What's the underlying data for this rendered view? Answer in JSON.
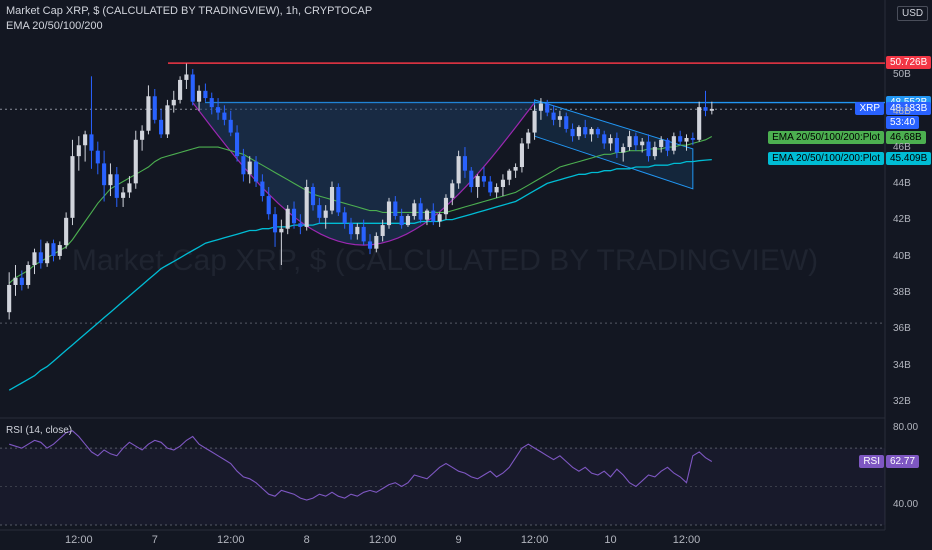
{
  "header": {
    "symbol_line": "Market Cap XRP, $ (CALCULATED BY TRADINGVIEW), 1h, CRYPTOCAP",
    "indicator_line": "EMA 20/50/100/200",
    "rsi_title": "RSI (14, close)",
    "currency": "USD"
  },
  "watermark": "Market Cap XRP, $ (CALCULATED BY TRADINGVIEW)",
  "colors": {
    "up": "#d1d4dc",
    "down": "#2962ff",
    "ema_fast": "#4caf50",
    "ema_slow": "#00bcd4",
    "resistance": "#f23645",
    "neck": "#2196f3",
    "rsi": "#7e57c2",
    "cup_fill": "#1e3a5f",
    "cup_edge": "#9c27b0"
  },
  "price_tags": [
    {
      "name": "resistance-tag",
      "label": "50.726B",
      "bg": "#f23645",
      "fg": "#ffffff",
      "price": 50.726
    },
    {
      "name": "neckline-tag",
      "label": "48.552B",
      "bg": "#2196f3",
      "fg": "#ffffff",
      "price": 48.552
    },
    {
      "name": "last-price-tag",
      "label": "48.183B",
      "sub": "53:40",
      "series": "XRP",
      "bg": "#2962ff",
      "fg": "#ffffff",
      "price": 48.183
    },
    {
      "name": "ema-green-tag",
      "label": "46.68B",
      "series": "EMA 20/50/100/200:Plot",
      "bg": "#4caf50",
      "fg": "#000000",
      "price": 46.68
    },
    {
      "name": "ema-cyan-tag",
      "label": "45.409B",
      "series": "EMA 20/50/100/200:Plot",
      "bg": "#00bcd4",
      "fg": "#000000",
      "price": 45.409
    }
  ],
  "rsi_tag": {
    "series": "RSI",
    "label": "62.77",
    "bg": "#7e57c2",
    "fg": "#ffffff",
    "value": 62.77
  },
  "chart_data": [
    {
      "type": "candlestick",
      "title": "Market Cap XRP, $ (CALCULATED BY TRADINGVIEW), 1h, CRYPTOCAP",
      "ylabel": "",
      "ylim": [
        31.5,
        52
      ],
      "y_ticks": [
        "32B",
        "34B",
        "36B",
        "38B",
        "40B",
        "42B",
        "44B",
        "46B",
        "48B",
        "50B"
      ],
      "y_tick_values": [
        32,
        34,
        36,
        38,
        40,
        42,
        44,
        46,
        48,
        50
      ],
      "x_ticks": [
        "12:00",
        "7",
        "12:00",
        "8",
        "12:00",
        "9",
        "12:00",
        "10",
        "12:00"
      ],
      "x_tick_hours": [
        12,
        24,
        36,
        48,
        60,
        72,
        84,
        96,
        108
      ],
      "horizontal_lines": [
        50.726,
        48.552,
        36.4
      ],
      "candles_ohlc": [
        [
          37.0,
          39.2,
          36.6,
          38.5
        ],
        [
          38.5,
          39.6,
          37.9,
          38.9
        ],
        [
          38.9,
          39.3,
          38.2,
          38.5
        ],
        [
          38.5,
          39.8,
          38.3,
          39.6
        ],
        [
          39.6,
          40.5,
          39.1,
          40.3
        ],
        [
          40.3,
          41.0,
          39.4,
          39.7
        ],
        [
          39.7,
          40.9,
          39.5,
          40.8
        ],
        [
          40.8,
          41.0,
          39.8,
          40.1
        ],
        [
          40.1,
          40.9,
          39.9,
          40.7
        ],
        [
          40.7,
          42.5,
          40.5,
          42.2
        ],
        [
          42.2,
          46.5,
          41.8,
          45.6
        ],
        [
          45.6,
          46.7,
          44.8,
          46.2
        ],
        [
          46.2,
          47.0,
          45.3,
          46.8
        ],
        [
          46.8,
          50.0,
          44.9,
          45.9
        ],
        [
          45.9,
          46.4,
          44.6,
          45.2
        ],
        [
          45.2,
          45.9,
          43.1,
          44.0
        ],
        [
          44.0,
          45.2,
          43.4,
          44.6
        ],
        [
          44.6,
          45.0,
          42.8,
          43.3
        ],
        [
          43.3,
          43.9,
          42.8,
          43.6
        ],
        [
          43.6,
          44.5,
          43.3,
          44.1
        ],
        [
          44.1,
          47.0,
          43.8,
          46.5
        ],
        [
          46.5,
          47.3,
          45.9,
          47.0
        ],
        [
          47.0,
          49.5,
          46.8,
          48.9
        ],
        [
          48.9,
          49.3,
          47.4,
          47.6
        ],
        [
          47.6,
          48.2,
          46.6,
          46.8
        ],
        [
          46.8,
          48.7,
          46.6,
          48.4
        ],
        [
          48.4,
          49.2,
          48.0,
          48.7
        ],
        [
          48.7,
          50.0,
          48.5,
          49.8
        ],
        [
          49.8,
          50.7,
          49.3,
          50.1
        ],
        [
          50.1,
          50.4,
          48.4,
          48.6
        ],
        [
          48.6,
          49.5,
          48.1,
          49.2
        ],
        [
          49.2,
          49.6,
          48.6,
          48.8
        ],
        [
          48.8,
          49.1,
          47.9,
          48.3
        ],
        [
          48.3,
          48.8,
          47.6,
          48.0
        ],
        [
          48.0,
          48.4,
          47.3,
          47.6
        ],
        [
          47.6,
          48.1,
          46.7,
          46.9
        ],
        [
          46.9,
          47.3,
          45.3,
          45.6
        ],
        [
          45.6,
          46.0,
          44.2,
          44.6
        ],
        [
          44.6,
          45.6,
          44.1,
          45.3
        ],
        [
          45.3,
          45.6,
          43.9,
          44.2
        ],
        [
          44.2,
          44.6,
          43.1,
          43.4
        ],
        [
          43.4,
          43.9,
          42.1,
          42.4
        ],
        [
          42.4,
          42.8,
          40.6,
          41.4
        ],
        [
          41.4,
          42.1,
          39.6,
          41.6
        ],
        [
          41.6,
          42.9,
          41.3,
          42.7
        ],
        [
          42.7,
          43.1,
          41.6,
          41.9
        ],
        [
          41.9,
          42.4,
          41.3,
          41.7
        ],
        [
          41.7,
          44.3,
          41.5,
          43.9
        ],
        [
          43.9,
          44.1,
          42.6,
          42.9
        ],
        [
          42.9,
          43.3,
          41.9,
          42.2
        ],
        [
          42.2,
          42.9,
          41.6,
          42.6
        ],
        [
          42.6,
          44.2,
          42.4,
          43.9
        ],
        [
          43.9,
          44.1,
          42.3,
          42.5
        ],
        [
          42.5,
          42.8,
          41.6,
          41.9
        ],
        [
          41.9,
          42.2,
          41.0,
          41.3
        ],
        [
          41.3,
          41.9,
          41.0,
          41.7
        ],
        [
          41.7,
          42.1,
          40.7,
          40.9
        ],
        [
          40.9,
          41.3,
          40.2,
          40.5
        ],
        [
          40.5,
          41.4,
          40.3,
          41.2
        ],
        [
          41.2,
          42.1,
          40.9,
          41.8
        ],
        [
          41.8,
          43.3,
          41.6,
          43.1
        ],
        [
          43.1,
          43.4,
          42.1,
          42.3
        ],
        [
          42.3,
          42.7,
          41.6,
          41.8
        ],
        [
          41.8,
          42.4,
          41.7,
          42.3
        ],
        [
          42.3,
          43.2,
          42.1,
          43.0
        ],
        [
          43.0,
          43.3,
          41.9,
          42.1
        ],
        [
          42.1,
          42.7,
          41.8,
          42.6
        ],
        [
          42.6,
          43.0,
          41.8,
          42.0
        ],
        [
          42.0,
          42.5,
          41.7,
          42.4
        ],
        [
          42.4,
          43.5,
          42.1,
          43.3
        ],
        [
          43.3,
          44.3,
          42.9,
          44.1
        ],
        [
          44.1,
          45.9,
          43.8,
          45.6
        ],
        [
          45.6,
          46.1,
          44.4,
          44.8
        ],
        [
          44.8,
          45.0,
          43.6,
          43.9
        ],
        [
          43.9,
          44.6,
          43.3,
          44.5
        ],
        [
          44.5,
          45.0,
          43.9,
          44.2
        ],
        [
          44.2,
          44.5,
          43.4,
          43.6
        ],
        [
          43.6,
          44.1,
          43.3,
          43.9
        ],
        [
          43.9,
          44.6,
          43.4,
          44.3
        ],
        [
          44.3,
          44.9,
          44.0,
          44.8
        ],
        [
          44.8,
          45.2,
          44.4,
          45.0
        ],
        [
          45.0,
          46.6,
          44.7,
          46.3
        ],
        [
          46.3,
          47.1,
          46.0,
          46.9
        ],
        [
          46.9,
          48.4,
          46.5,
          48.1
        ],
        [
          48.1,
          48.8,
          47.6,
          48.5
        ],
        [
          48.5,
          48.7,
          47.8,
          48.0
        ],
        [
          48.0,
          48.4,
          47.3,
          47.6
        ],
        [
          47.6,
          48.1,
          47.2,
          47.8
        ],
        [
          47.8,
          48.0,
          46.9,
          47.1
        ],
        [
          47.1,
          47.4,
          46.4,
          46.7
        ],
        [
          46.7,
          47.3,
          46.5,
          47.2
        ],
        [
          47.2,
          47.6,
          46.6,
          46.8
        ],
        [
          46.8,
          47.2,
          46.4,
          47.1
        ],
        [
          47.1,
          47.2,
          46.6,
          46.8
        ],
        [
          46.8,
          47.0,
          46.0,
          46.3
        ],
        [
          46.3,
          46.8,
          45.9,
          46.6
        ],
        [
          46.6,
          46.9,
          45.5,
          45.8
        ],
        [
          45.8,
          46.3,
          45.3,
          46.1
        ],
        [
          46.1,
          47.0,
          45.9,
          46.7
        ],
        [
          46.7,
          46.9,
          45.9,
          46.2
        ],
        [
          46.2,
          46.6,
          45.8,
          46.4
        ],
        [
          46.4,
          46.8,
          45.3,
          45.6
        ],
        [
          45.6,
          46.4,
          45.4,
          46.1
        ],
        [
          46.1,
          46.7,
          45.8,
          46.5
        ],
        [
          46.5,
          46.6,
          45.6,
          45.9
        ],
        [
          45.9,
          46.9,
          45.7,
          46.7
        ],
        [
          46.7,
          47.0,
          46.2,
          46.4
        ],
        [
          46.4,
          46.8,
          45.9,
          46.6
        ],
        [
          46.6,
          46.9,
          46.2,
          46.5
        ],
        [
          46.5,
          48.6,
          46.4,
          48.3
        ],
        [
          48.3,
          49.2,
          47.8,
          48.1
        ],
        [
          48.1,
          48.6,
          47.9,
          48.2
        ]
      ],
      "ema_fast": [
        38.6,
        38.9,
        39.1,
        39.3,
        39.6,
        39.8,
        40.0,
        40.2,
        40.4,
        40.6,
        41.0,
        41.5,
        42.0,
        42.5,
        43.0,
        43.4,
        43.8,
        44.0,
        44.2,
        44.4,
        44.6,
        44.8,
        45.0,
        45.3,
        45.5,
        45.6,
        45.7,
        45.8,
        45.9,
        46.0,
        46.1,
        46.1,
        46.1,
        46.1,
        46.0,
        45.9,
        45.8,
        45.7,
        45.5,
        45.3,
        45.1,
        44.9,
        44.7,
        44.5,
        44.3,
        44.1,
        43.9,
        43.7,
        43.5,
        43.4,
        43.3,
        43.2,
        43.1,
        43.0,
        42.9,
        42.8,
        42.7,
        42.6,
        42.6,
        42.5,
        42.5,
        42.5,
        42.5,
        42.5,
        42.5,
        42.5,
        42.5,
        42.5,
        42.5,
        42.5,
        42.6,
        42.7,
        42.8,
        42.9,
        43.0,
        43.1,
        43.2,
        43.3,
        43.4,
        43.5,
        43.6,
        43.8,
        44.0,
        44.2,
        44.4,
        44.6,
        44.8,
        45.0,
        45.1,
        45.2,
        45.3,
        45.4,
        45.5,
        45.6,
        45.7,
        45.7,
        45.8,
        45.8,
        45.9,
        45.9,
        45.9,
        46.0,
        46.0,
        46.0,
        46.1,
        46.1,
        46.2,
        46.2,
        46.3,
        46.4,
        46.5,
        46.68
      ],
      "ema_slow": [
        32.7,
        32.9,
        33.1,
        33.3,
        33.5,
        33.8,
        34.0,
        34.3,
        34.6,
        34.9,
        35.2,
        35.5,
        35.8,
        36.1,
        36.4,
        36.7,
        37.0,
        37.3,
        37.6,
        37.9,
        38.2,
        38.5,
        38.8,
        39.1,
        39.4,
        39.6,
        39.8,
        40.0,
        40.2,
        40.4,
        40.6,
        40.8,
        40.9,
        41.0,
        41.1,
        41.2,
        41.3,
        41.4,
        41.5,
        41.5,
        41.6,
        41.6,
        41.7,
        41.7,
        41.7,
        41.8,
        41.8,
        41.8,
        41.8,
        41.9,
        41.9,
        41.9,
        41.9,
        41.9,
        41.9,
        41.9,
        41.9,
        41.9,
        41.9,
        41.9,
        41.9,
        41.9,
        41.9,
        41.9,
        41.9,
        42.0,
        42.0,
        42.0,
        42.0,
        42.1,
        42.1,
        42.2,
        42.3,
        42.4,
        42.5,
        42.6,
        42.7,
        42.8,
        42.9,
        43.0,
        43.1,
        43.3,
        43.5,
        43.7,
        43.9,
        44.1,
        44.2,
        44.3,
        44.4,
        44.5,
        44.6,
        44.6,
        44.7,
        44.7,
        44.8,
        44.8,
        44.9,
        44.9,
        44.9,
        45.0,
        45.0,
        45.0,
        45.1,
        45.1,
        45.1,
        45.2,
        45.2,
        45.3,
        45.3,
        45.35,
        45.38,
        45.409
      ]
    },
    {
      "type": "line",
      "title": "RSI (14, close)",
      "ylim": [
        30,
        82
      ],
      "y_ticks": [
        "40.00",
        "80.00"
      ],
      "y_tick_values": [
        40,
        80
      ],
      "guides": [
        70,
        30
      ],
      "series": [
        {
          "name": "RSI",
          "values": [
            72,
            71,
            70,
            72,
            74,
            73,
            70,
            72,
            75,
            78,
            79,
            76,
            72,
            68,
            66,
            69,
            67,
            66,
            70,
            73,
            71,
            69,
            72,
            74,
            73,
            70,
            69,
            71,
            74,
            76,
            72,
            70,
            68,
            66,
            64,
            62,
            58,
            55,
            54,
            52,
            49,
            46,
            45,
            48,
            47,
            46,
            44,
            43,
            44,
            46,
            45,
            47,
            45,
            44,
            46,
            45,
            47,
            48,
            47,
            49,
            51,
            52,
            50,
            52,
            56,
            55,
            54,
            57,
            60,
            62,
            60,
            58,
            57,
            55,
            54,
            56,
            58,
            55,
            57,
            60,
            65,
            70,
            72,
            70,
            68,
            66,
            64,
            66,
            63,
            60,
            58,
            60,
            57,
            56,
            58,
            55,
            59,
            56,
            52,
            50,
            53,
            56,
            55,
            58,
            60,
            57,
            55,
            52,
            66,
            68,
            65,
            63
          ]
        }
      ]
    }
  ]
}
